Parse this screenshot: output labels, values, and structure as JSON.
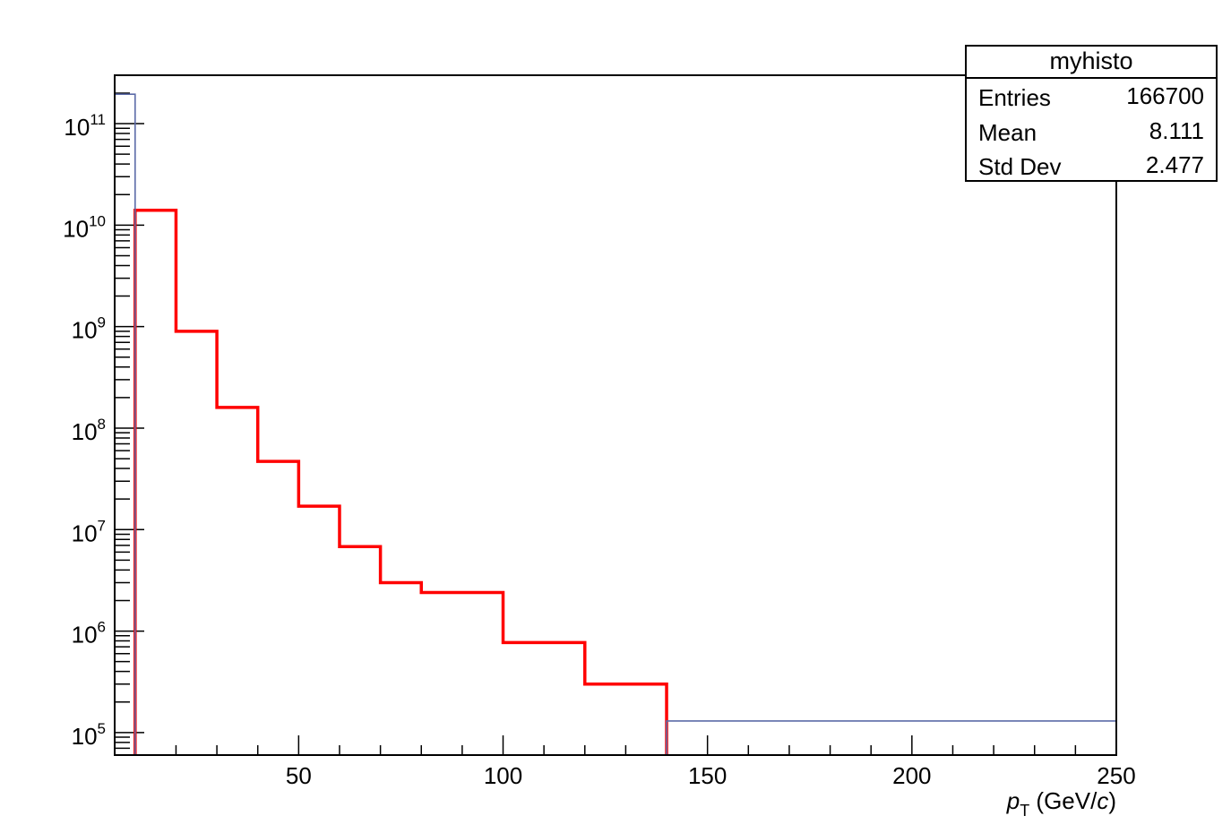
{
  "chart_data": {
    "type": "histogram",
    "xlabel": "p_T (GeV/c)",
    "xlabel_parts": {
      "symbol": "p",
      "subscript": "T",
      "unit_open": " (GeV/",
      "unit_italic": "c",
      "unit_close": ")"
    },
    "xlim": [
      5,
      250
    ],
    "ylim": [
      60000,
      300000000000
    ],
    "yscale": "log",
    "x_major_ticks": [
      50,
      100,
      150,
      200,
      250
    ],
    "x_tick_labels": [
      "50",
      "100",
      "150",
      "200",
      "250"
    ],
    "y_major_ticks": [
      100000,
      1000000,
      10000000,
      100000000,
      1000000000,
      10000000000,
      100000000000
    ],
    "y_tick_labels": [
      {
        "base": "10",
        "exp": "5"
      },
      {
        "base": "10",
        "exp": "6"
      },
      {
        "base": "10",
        "exp": "7"
      },
      {
        "base": "10",
        "exp": "8"
      },
      {
        "base": "10",
        "exp": "9"
      },
      {
        "base": "10",
        "exp": "10"
      },
      {
        "base": "10",
        "exp": "11"
      }
    ],
    "series": [
      {
        "color": "#ff0000",
        "bin_edges": [
          10,
          20,
          30,
          40,
          50,
          60,
          70,
          80,
          100,
          120,
          140
        ],
        "values": [
          14000000000,
          900000000,
          160000000,
          47000000,
          17000000,
          6800000,
          3000000,
          2400000,
          770000,
          300000
        ]
      },
      {
        "color": "#5c6ba8",
        "bin_edges": [
          5,
          10,
          140,
          250
        ],
        "values": [
          195000000000,
          0,
          130000
        ]
      }
    ],
    "stats_box": {
      "title": "myhisto",
      "rows": [
        {
          "label": "Entries",
          "value": "166700"
        },
        {
          "label": "Mean",
          "value": "8.111"
        },
        {
          "label": "Std Dev",
          "value": "2.477"
        }
      ]
    }
  }
}
